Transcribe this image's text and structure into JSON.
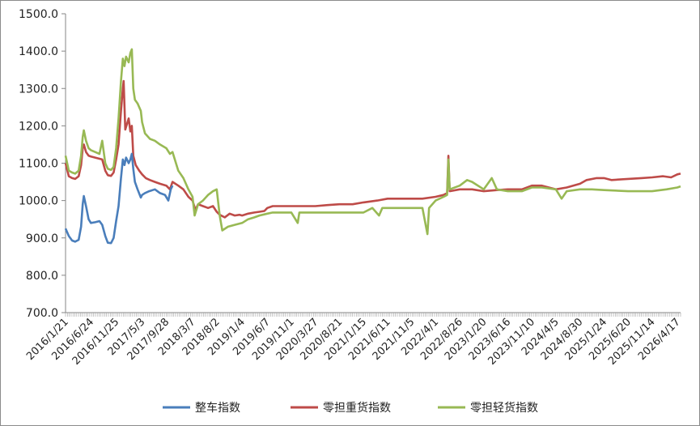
{
  "chart_data": {
    "type": "line",
    "title": "",
    "xlabel": "",
    "ylabel": "",
    "ylim": [
      700,
      1500
    ],
    "yticks": [
      "700.0",
      "800.0",
      "900.0",
      "1000.0",
      "1100.0",
      "1200.0",
      "1300.0",
      "1400.0",
      "1500.0"
    ],
    "xlim": [
      "2016-01-21",
      "2026-05-07"
    ],
    "xticks": [
      "2016/1/21",
      "2016/6/24",
      "2016/11/25",
      "2017/5/3",
      "2017/9/28",
      "2018/3/7",
      "2018/8/2",
      "2019/1/4",
      "2019/6/7",
      "2019/11/1",
      "2020/3/27",
      "2020/8/21",
      "2021/1/15",
      "2021/6/11",
      "2021/11/5",
      "2022/4/1",
      "2022/8/26",
      "2023/1/20",
      "2023/6/16",
      "2023/11/10",
      "2024/4/5",
      "2024/8/30",
      "2025/1/24",
      "2025/6/20",
      "2025/11/14",
      "2026/4/17"
    ],
    "grid": false,
    "legend": "bottom",
    "series": [
      {
        "name": "整车指数",
        "color": "#4a7ebb",
        "points": [
          [
            "2016-01-21",
            925
          ],
          [
            "2016-02-10",
            905
          ],
          [
            "2016-03-01",
            893
          ],
          [
            "2016-03-20",
            890
          ],
          [
            "2016-04-10",
            895
          ],
          [
            "2016-04-25",
            930
          ],
          [
            "2016-05-05",
            990
          ],
          [
            "2016-05-12",
            1012
          ],
          [
            "2016-05-25",
            985
          ],
          [
            "2016-06-10",
            950
          ],
          [
            "2016-06-24",
            940
          ],
          [
            "2016-07-20",
            942
          ],
          [
            "2016-08-15",
            945
          ],
          [
            "2016-09-01",
            935
          ],
          [
            "2016-09-20",
            905
          ],
          [
            "2016-10-05",
            887
          ],
          [
            "2016-10-25",
            886
          ],
          [
            "2016-11-10",
            900
          ],
          [
            "2016-11-25",
            945
          ],
          [
            "2016-12-10",
            985
          ],
          [
            "2016-12-25",
            1060
          ],
          [
            "2017-01-05",
            1110
          ],
          [
            "2017-01-15",
            1095
          ],
          [
            "2017-01-25",
            1115
          ],
          [
            "2017-02-10",
            1100
          ],
          [
            "2017-02-20",
            1110
          ],
          [
            "2017-03-01",
            1125
          ],
          [
            "2017-03-10",
            1085
          ],
          [
            "2017-03-20",
            1050
          ],
          [
            "2017-04-05",
            1030
          ],
          [
            "2017-04-25",
            1008
          ],
          [
            "2017-05-03",
            1015
          ],
          [
            "2017-05-20",
            1020
          ],
          [
            "2017-06-15",
            1025
          ],
          [
            "2017-07-20",
            1030
          ],
          [
            "2017-08-20",
            1020
          ],
          [
            "2017-09-20",
            1015
          ],
          [
            "2017-10-10",
            1000
          ],
          [
            "2017-10-25",
            1030
          ],
          [
            "2017-11-05",
            1040
          ]
        ]
      },
      {
        "name": "零担重货指数",
        "color": "#be4b48",
        "points": [
          [
            "2016-01-21",
            1100
          ],
          [
            "2016-02-10",
            1065
          ],
          [
            "2016-03-01",
            1060
          ],
          [
            "2016-03-20",
            1058
          ],
          [
            "2016-04-10",
            1065
          ],
          [
            "2016-04-25",
            1095
          ],
          [
            "2016-05-05",
            1140
          ],
          [
            "2016-05-12",
            1150
          ],
          [
            "2016-05-25",
            1130
          ],
          [
            "2016-06-10",
            1120
          ],
          [
            "2016-06-24",
            1118
          ],
          [
            "2016-07-20",
            1115
          ],
          [
            "2016-08-15",
            1112
          ],
          [
            "2016-09-01",
            1110
          ],
          [
            "2016-09-20",
            1080
          ],
          [
            "2016-10-05",
            1068
          ],
          [
            "2016-10-25",
            1066
          ],
          [
            "2016-11-10",
            1075
          ],
          [
            "2016-11-25",
            1110
          ],
          [
            "2016-12-10",
            1150
          ],
          [
            "2016-12-25",
            1240
          ],
          [
            "2017-01-05",
            1300
          ],
          [
            "2017-01-10",
            1320
          ],
          [
            "2017-01-20",
            1190
          ],
          [
            "2017-02-10",
            1220
          ],
          [
            "2017-02-20",
            1185
          ],
          [
            "2017-03-01",
            1200
          ],
          [
            "2017-03-10",
            1120
          ],
          [
            "2017-03-25",
            1095
          ],
          [
            "2017-04-15",
            1080
          ],
          [
            "2017-05-03",
            1070
          ],
          [
            "2017-05-25",
            1060
          ],
          [
            "2017-06-20",
            1055
          ],
          [
            "2017-07-20",
            1050
          ],
          [
            "2017-08-20",
            1045
          ],
          [
            "2017-09-28",
            1040
          ],
          [
            "2017-10-20",
            1030
          ],
          [
            "2017-11-05",
            1050
          ],
          [
            "2017-12-10",
            1040
          ],
          [
            "2018-01-10",
            1030
          ],
          [
            "2018-02-10",
            1010
          ],
          [
            "2018-03-07",
            1000
          ],
          [
            "2018-03-25",
            975
          ],
          [
            "2018-04-10",
            990
          ],
          [
            "2018-05-10",
            985
          ],
          [
            "2018-06-10",
            980
          ],
          [
            "2018-07-10",
            985
          ],
          [
            "2018-08-02",
            970
          ],
          [
            "2018-08-20",
            962
          ],
          [
            "2018-09-20",
            955
          ],
          [
            "2018-10-20",
            965
          ],
          [
            "2018-11-20",
            960
          ],
          [
            "2018-12-20",
            962
          ],
          [
            "2019-01-04",
            960
          ],
          [
            "2019-02-10",
            965
          ],
          [
            "2019-03-20",
            968
          ],
          [
            "2019-04-20",
            970
          ],
          [
            "2019-05-20",
            972
          ],
          [
            "2019-06-07",
            980
          ],
          [
            "2019-07-10",
            985
          ],
          [
            "2019-09-10",
            985
          ],
          [
            "2019-11-01",
            985
          ],
          [
            "2020-01-10",
            985
          ],
          [
            "2020-03-27",
            985
          ],
          [
            "2020-06-10",
            988
          ],
          [
            "2020-08-21",
            990
          ],
          [
            "2020-11-10",
            990
          ],
          [
            "2021-01-15",
            995
          ],
          [
            "2021-04-10",
            1000
          ],
          [
            "2021-06-11",
            1005
          ],
          [
            "2021-09-10",
            1005
          ],
          [
            "2021-11-05",
            1005
          ],
          [
            "2022-01-10",
            1005
          ],
          [
            "2022-04-01",
            1010
          ],
          [
            "2022-05-20",
            1015
          ],
          [
            "2022-06-10",
            1020
          ],
          [
            "2022-06-18",
            1120
          ],
          [
            "2022-06-26",
            1025
          ],
          [
            "2022-08-26",
            1030
          ],
          [
            "2022-11-10",
            1030
          ],
          [
            "2023-01-20",
            1025
          ],
          [
            "2023-04-10",
            1028
          ],
          [
            "2023-06-16",
            1030
          ],
          [
            "2023-09-10",
            1030
          ],
          [
            "2023-11-10",
            1040
          ],
          [
            "2024-01-10",
            1040
          ],
          [
            "2024-04-05",
            1030
          ],
          [
            "2024-06-10",
            1035
          ],
          [
            "2024-08-30",
            1045
          ],
          [
            "2024-10-10",
            1055
          ],
          [
            "2024-12-10",
            1060
          ],
          [
            "2025-01-24",
            1060
          ],
          [
            "2025-03-10",
            1055
          ],
          [
            "2025-06-20",
            1058
          ],
          [
            "2025-09-10",
            1060
          ],
          [
            "2025-11-14",
            1062
          ],
          [
            "2026-01-20",
            1065
          ],
          [
            "2026-03-10",
            1062
          ],
          [
            "2026-04-17",
            1070
          ],
          [
            "2026-05-07",
            1072
          ]
        ]
      },
      {
        "name": "零担轻货指数",
        "color": "#98b954",
        "points": [
          [
            "2016-01-21",
            1120
          ],
          [
            "2016-02-10",
            1080
          ],
          [
            "2016-03-01",
            1075
          ],
          [
            "2016-03-20",
            1072
          ],
          [
            "2016-04-10",
            1080
          ],
          [
            "2016-04-25",
            1120
          ],
          [
            "2016-05-05",
            1170
          ],
          [
            "2016-05-12",
            1188
          ],
          [
            "2016-05-25",
            1160
          ],
          [
            "2016-06-10",
            1140
          ],
          [
            "2016-06-24",
            1135
          ],
          [
            "2016-07-20",
            1130
          ],
          [
            "2016-08-15",
            1125
          ],
          [
            "2016-09-01",
            1160
          ],
          [
            "2016-09-20",
            1100
          ],
          [
            "2016-10-05",
            1085
          ],
          [
            "2016-10-25",
            1082
          ],
          [
            "2016-11-10",
            1090
          ],
          [
            "2016-11-25",
            1140
          ],
          [
            "2016-12-10",
            1220
          ],
          [
            "2016-12-25",
            1320
          ],
          [
            "2017-01-05",
            1380
          ],
          [
            "2017-01-15",
            1360
          ],
          [
            "2017-01-25",
            1385
          ],
          [
            "2017-02-10",
            1370
          ],
          [
            "2017-02-20",
            1395
          ],
          [
            "2017-03-01",
            1405
          ],
          [
            "2017-03-10",
            1300
          ],
          [
            "2017-03-20",
            1270
          ],
          [
            "2017-04-05",
            1260
          ],
          [
            "2017-04-25",
            1240
          ],
          [
            "2017-05-03",
            1210
          ],
          [
            "2017-05-20",
            1180
          ],
          [
            "2017-06-20",
            1165
          ],
          [
            "2017-07-20",
            1160
          ],
          [
            "2017-08-20",
            1150
          ],
          [
            "2017-09-28",
            1140
          ],
          [
            "2017-10-20",
            1125
          ],
          [
            "2017-11-05",
            1130
          ],
          [
            "2017-12-10",
            1080
          ],
          [
            "2018-01-10",
            1060
          ],
          [
            "2018-02-10",
            1030
          ],
          [
            "2018-03-07",
            1010
          ],
          [
            "2018-03-20",
            960
          ],
          [
            "2018-04-10",
            990
          ],
          [
            "2018-05-10",
            1000
          ],
          [
            "2018-06-10",
            1015
          ],
          [
            "2018-07-10",
            1025
          ],
          [
            "2018-08-02",
            1030
          ],
          [
            "2018-08-20",
            960
          ],
          [
            "2018-09-05",
            920
          ],
          [
            "2018-10-10",
            930
          ],
          [
            "2018-11-20",
            935
          ],
          [
            "2019-01-04",
            940
          ],
          [
            "2019-02-10",
            950
          ],
          [
            "2019-03-20",
            955
          ],
          [
            "2019-04-20",
            960
          ],
          [
            "2019-06-07",
            965
          ],
          [
            "2019-07-10",
            968
          ],
          [
            "2019-09-10",
            968
          ],
          [
            "2019-11-01",
            968
          ],
          [
            "2019-12-10",
            940
          ],
          [
            "2019-12-20",
            968
          ],
          [
            "2020-03-27",
            968
          ],
          [
            "2020-08-21",
            968
          ],
          [
            "2021-01-15",
            968
          ],
          [
            "2021-03-10",
            980
          ],
          [
            "2021-04-20",
            960
          ],
          [
            "2021-05-10",
            980
          ],
          [
            "2021-06-11",
            980
          ],
          [
            "2021-09-10",
            980
          ],
          [
            "2021-11-05",
            980
          ],
          [
            "2022-01-10",
            980
          ],
          [
            "2022-02-10",
            910
          ],
          [
            "2022-02-20",
            980
          ],
          [
            "2022-04-01",
            1000
          ],
          [
            "2022-05-20",
            1010
          ],
          [
            "2022-06-10",
            1015
          ],
          [
            "2022-06-18",
            1110
          ],
          [
            "2022-06-26",
            1030
          ],
          [
            "2022-08-26",
            1040
          ],
          [
            "2022-10-10",
            1055
          ],
          [
            "2022-11-10",
            1050
          ],
          [
            "2023-01-20",
            1030
          ],
          [
            "2023-03-10",
            1060
          ],
          [
            "2023-04-10",
            1030
          ],
          [
            "2023-06-16",
            1025
          ],
          [
            "2023-09-10",
            1025
          ],
          [
            "2023-11-10",
            1035
          ],
          [
            "2024-01-10",
            1035
          ],
          [
            "2024-04-05",
            1030
          ],
          [
            "2024-05-10",
            1005
          ],
          [
            "2024-06-10",
            1025
          ],
          [
            "2024-08-30",
            1030
          ],
          [
            "2024-11-10",
            1030
          ],
          [
            "2025-01-24",
            1028
          ],
          [
            "2025-06-20",
            1025
          ],
          [
            "2025-11-14",
            1025
          ],
          [
            "2026-02-10",
            1030
          ],
          [
            "2026-04-17",
            1035
          ],
          [
            "2026-05-07",
            1038
          ]
        ]
      }
    ]
  }
}
